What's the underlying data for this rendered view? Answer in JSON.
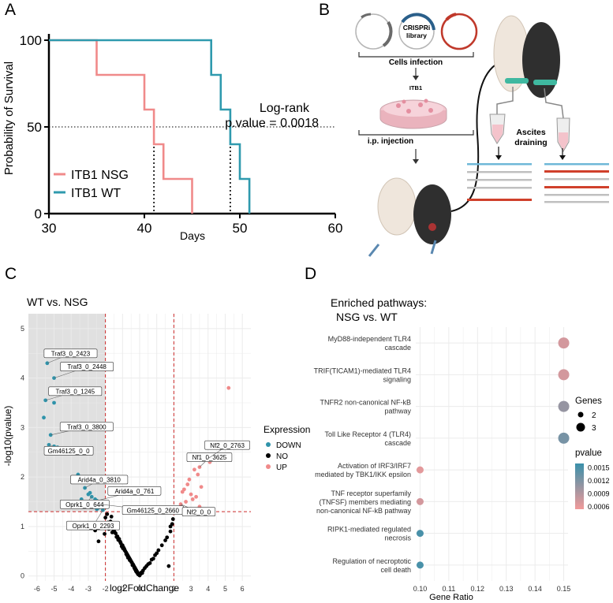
{
  "panels": {
    "a": "A",
    "b": "B",
    "c": "C",
    "d": "D"
  },
  "colors": {
    "nsg": "#f08a8a",
    "wt": "#2f9aae",
    "down": "#2f93aa",
    "no": "#000000",
    "up": "#f08a8a",
    "threshold": "#cc2b2b",
    "shade": "#e0e0e0",
    "grid": "#ebebeb",
    "pvalue_low": "#f29a9a",
    "pvalue_high": "#3a90aa",
    "vector_gray": "#8a8a8a",
    "vector_blue": "#2a6f97",
    "vector_red": "#c0392b"
  },
  "survival": {
    "chart_data": {
      "type": "line",
      "xlabel": "Days",
      "ylabel": "Probability of Survival",
      "xlim": [
        30,
        60
      ],
      "ylim": [
        0,
        100
      ],
      "xticks": [
        30,
        40,
        50,
        60
      ],
      "yticks": [
        0,
        50,
        100
      ],
      "annotation_line1": "Log-rank",
      "annotation_line2": "p.value = 0.0018",
      "series": [
        {
          "name": "ITB1 NSG",
          "steps": [
            [
              30,
              100
            ],
            [
              35,
              100
            ],
            [
              35,
              80
            ],
            [
              40,
              80
            ],
            [
              40,
              60
            ],
            [
              41,
              60
            ],
            [
              41,
              40
            ],
            [
              42,
              40
            ],
            [
              42,
              20
            ],
            [
              45,
              20
            ],
            [
              45,
              0
            ]
          ],
          "median": 41
        },
        {
          "name": "ITB1 WT",
          "steps": [
            [
              30,
              100
            ],
            [
              47,
              100
            ],
            [
              47,
              80
            ],
            [
              48,
              80
            ],
            [
              48,
              60
            ],
            [
              49,
              60
            ],
            [
              49,
              40
            ],
            [
              50,
              40
            ],
            [
              50,
              20
            ],
            [
              51,
              20
            ],
            [
              51,
              0
            ]
          ],
          "median": 49
        }
      ]
    }
  },
  "schematic": {
    "vector_center": "CRISPRi",
    "vector_center2": "library",
    "step1": "Cells infection",
    "dish_label": "ITB1",
    "step2": "i.p. injection",
    "ascites1": "Ascites",
    "ascites2": "draining"
  },
  "volcano": {
    "chart_data": {
      "type": "scatter",
      "title": "WT vs. NSG",
      "xlabel": "log2FoldChange",
      "ylabel": "-log10(pvalue)",
      "xlim": [
        -6.5,
        6.5
      ],
      "ylim": [
        -0.1,
        5.3
      ],
      "xticks": [
        -6,
        -5,
        -4,
        -3,
        -2,
        -1,
        0,
        1,
        2,
        3,
        4,
        5,
        6
      ],
      "yticks": [
        0,
        1,
        2,
        3,
        4,
        5
      ],
      "fc_threshold": 2,
      "p_threshold": 1.3,
      "legend_title": "Expression",
      "legend": [
        "DOWN",
        "NO",
        "UP"
      ],
      "down": [
        [
          -5.4,
          4.3
        ],
        [
          -5.0,
          4.0
        ],
        [
          -5.5,
          3.55
        ],
        [
          -5.0,
          3.5
        ],
        [
          -5.6,
          3.2
        ],
        [
          -5.2,
          2.85
        ],
        [
          -5.3,
          2.65
        ],
        [
          -5.0,
          2.62
        ],
        [
          -4.8,
          2.6
        ],
        [
          -3.6,
          2.05
        ],
        [
          -3.2,
          1.78
        ],
        [
          -3.0,
          1.65
        ],
        [
          -2.8,
          1.6
        ],
        [
          -2.6,
          1.55
        ],
        [
          -2.5,
          1.52
        ],
        [
          -2.4,
          1.48
        ],
        [
          -2.3,
          1.45
        ],
        [
          -2.2,
          1.42
        ],
        [
          -2.4,
          1.38
        ],
        [
          -2.5,
          1.35
        ],
        [
          -2.15,
          1.33
        ],
        [
          -3.4,
          1.55
        ],
        [
          -2.9,
          1.68
        ]
      ],
      "up": [
        [
          5.2,
          3.8
        ],
        [
          4.2,
          2.6
        ],
        [
          4.0,
          2.45
        ],
        [
          3.9,
          2.35
        ],
        [
          4.1,
          2.3
        ],
        [
          3.5,
          2.2
        ],
        [
          3.2,
          2.15
        ],
        [
          3.4,
          2.05
        ],
        [
          2.9,
          1.95
        ],
        [
          2.8,
          1.85
        ],
        [
          2.6,
          1.75
        ],
        [
          2.5,
          1.7
        ],
        [
          3.0,
          1.65
        ],
        [
          3.6,
          1.8
        ],
        [
          3.3,
          1.6
        ],
        [
          3.1,
          1.55
        ],
        [
          2.7,
          1.5
        ],
        [
          2.4,
          1.45
        ],
        [
          3.5,
          1.4
        ],
        [
          2.3,
          1.38
        ]
      ],
      "no": [
        [
          -1.9,
          1.25
        ],
        [
          -1.7,
          1.1
        ],
        [
          -1.6,
          0.98
        ],
        [
          -1.5,
          0.92
        ],
        [
          -1.4,
          0.86
        ],
        [
          -1.3,
          0.8
        ],
        [
          -1.2,
          0.75
        ],
        [
          -1.15,
          0.7
        ],
        [
          -1.1,
          0.66
        ],
        [
          -1.0,
          0.62
        ],
        [
          -0.95,
          0.58
        ],
        [
          -0.9,
          0.55
        ],
        [
          -0.85,
          0.51
        ],
        [
          -0.8,
          0.48
        ],
        [
          -0.75,
          0.45
        ],
        [
          -0.7,
          0.42
        ],
        [
          -0.65,
          0.39
        ],
        [
          -0.6,
          0.36
        ],
        [
          -0.55,
          0.33
        ],
        [
          -0.5,
          0.3
        ],
        [
          -0.45,
          0.27
        ],
        [
          -0.4,
          0.24
        ],
        [
          -0.35,
          0.21
        ],
        [
          -0.3,
          0.18
        ],
        [
          -0.25,
          0.15
        ],
        [
          -0.2,
          0.12
        ],
        [
          -0.15,
          0.09
        ],
        [
          -0.1,
          0.06
        ],
        [
          -0.05,
          0.03
        ],
        [
          0.0,
          0.01
        ],
        [
          0.05,
          0.04
        ],
        [
          0.1,
          0.07
        ],
        [
          0.2,
          0.11
        ],
        [
          0.3,
          0.16
        ],
        [
          0.4,
          0.2
        ],
        [
          0.5,
          0.24
        ],
        [
          0.7,
          0.33
        ],
        [
          0.9,
          0.42
        ],
        [
          1.1,
          0.52
        ],
        [
          1.3,
          0.62
        ],
        [
          1.5,
          0.72
        ],
        [
          1.6,
          0.78
        ],
        [
          1.8,
          0.9
        ],
        [
          1.9,
          1.05
        ],
        [
          1.8,
          1.0
        ],
        [
          -2.0,
          1.18
        ],
        [
          -1.8,
          0.95
        ],
        [
          -1.6,
          0.88
        ],
        [
          -1.35,
          0.79
        ],
        [
          -1.25,
          0.73
        ],
        [
          -1.05,
          0.6
        ],
        [
          -0.98,
          0.56
        ],
        [
          -0.78,
          0.44
        ],
        [
          -0.68,
          0.37
        ],
        [
          -0.58,
          0.32
        ],
        [
          -0.42,
          0.22
        ],
        [
          -0.32,
          0.17
        ],
        [
          -0.22,
          0.1
        ],
        [
          -0.12,
          0.05
        ],
        [
          -1.45,
          0.88
        ],
        [
          -1.55,
          0.95
        ],
        [
          -1.75,
          1.06
        ],
        [
          -2.05,
          0.85
        ],
        [
          -2.4,
          0.7
        ],
        [
          -2.6,
          0.92
        ],
        [
          -1.65,
          1.2
        ],
        [
          -1.85,
          1.08
        ],
        [
          0.6,
          0.26
        ],
        [
          0.8,
          0.35
        ],
        [
          1.0,
          0.46
        ],
        [
          -0.88,
          0.52
        ],
        [
          -0.72,
          0.41
        ],
        [
          -1.12,
          0.68
        ],
        [
          -1.28,
          0.77
        ],
        [
          -0.48,
          0.28
        ],
        [
          -0.38,
          0.23
        ],
        [
          -0.28,
          0.14
        ],
        [
          -0.18,
          0.08
        ],
        [
          -0.08,
          0.03
        ],
        [
          0.15,
          0.06
        ],
        [
          1.7,
          0.2
        ],
        [
          1.95,
          1.15
        ],
        [
          -2.1,
          1.05
        ]
      ],
      "labels": [
        {
          "text": "Traf3_0_2423",
          "px": -5.4,
          "py": 4.3
        },
        {
          "text": "Traf3_0_2448",
          "px": -5.0,
          "py": 4.0
        },
        {
          "text": "Traf3_0_1245",
          "px": -5.5,
          "py": 3.55
        },
        {
          "text": "Traf3_0_3800",
          "px": -5.2,
          "py": 2.85
        },
        {
          "text": "Gm46125_0_0",
          "px": -5.3,
          "py": 2.65
        },
        {
          "text": "Arid4a_0_3810",
          "px": -3.2,
          "py": 1.78
        },
        {
          "text": "Arid4a_0_761",
          "px": -2.5,
          "py": 1.52
        },
        {
          "text": "Oprk1_0_644",
          "px": -2.8,
          "py": 1.6
        },
        {
          "text": "Gm46125_0_2660",
          "px": -2.3,
          "py": 1.45
        },
        {
          "text": "Oprk1_0_2293",
          "px": -2.15,
          "py": 1.33
        },
        {
          "text": "Nf1_0_3625",
          "px": 3.5,
          "py": 2.2
        },
        {
          "text": "Nf2_0_2763",
          "px": 3.9,
          "py": 2.35
        },
        {
          "text": "Nf2_0_0",
          "px": 2.4,
          "py": 1.45
        }
      ]
    }
  },
  "dotplot": {
    "chart_data": {
      "type": "scatter",
      "title_line1": "Enriched pathways:",
      "title_line2": "NSG vs. WT",
      "xlabel": "Gene Ratio",
      "xlim": [
        0.0985,
        0.1515
      ],
      "xticks": [
        0.1,
        0.11,
        0.12,
        0.13,
        0.14,
        0.15
      ],
      "xtick_labels": [
        "0.10",
        "0.11",
        "0.12",
        "0.13",
        "0.14",
        "0.15"
      ],
      "size_legend_title": "Genes",
      "size_legend": [
        2,
        3
      ],
      "color_legend_title": "pvalue",
      "color_legend_ticks": [
        "0.0015",
        "0.0012",
        "0.0009",
        "0.0006"
      ],
      "color_range": [
        0.0005,
        0.0017
      ],
      "pathways": [
        {
          "lines": [
            "MyD88-independent TLR4",
            "cascade"
          ],
          "gene_ratio": 0.15,
          "genes": 3,
          "pvalue": 0.0007
        },
        {
          "lines": [
            "TRIF(TICAM1)-mediated TLR4",
            "signaling"
          ],
          "gene_ratio": 0.15,
          "genes": 3,
          "pvalue": 0.0007
        },
        {
          "lines": [
            "TNFR2 non-canonical NF-kB",
            "pathway"
          ],
          "gene_ratio": 0.15,
          "genes": 3,
          "pvalue": 0.0011
        },
        {
          "lines": [
            "Toll Like Receptor 4 (TLR4)",
            "cascade"
          ],
          "gene_ratio": 0.15,
          "genes": 3,
          "pvalue": 0.0013
        },
        {
          "lines": [
            "Activation of IRF3/IRF7",
            "mediated by TBK1/IKK epsilon"
          ],
          "gene_ratio": 0.1,
          "genes": 2,
          "pvalue": 0.0006
        },
        {
          "lines": [
            "TNF receptor superfamily",
            "(TNFSF) members mediating",
            "non-canonical NF-kB pathway"
          ],
          "gene_ratio": 0.1,
          "genes": 2,
          "pvalue": 0.0007
        },
        {
          "lines": [
            "RIPK1-mediated regulated",
            "necrosis"
          ],
          "gene_ratio": 0.1,
          "genes": 2,
          "pvalue": 0.0016
        },
        {
          "lines": [
            "Regulation of necroptotic",
            "cell death"
          ],
          "gene_ratio": 0.1,
          "genes": 2,
          "pvalue": 0.0016
        }
      ]
    }
  }
}
